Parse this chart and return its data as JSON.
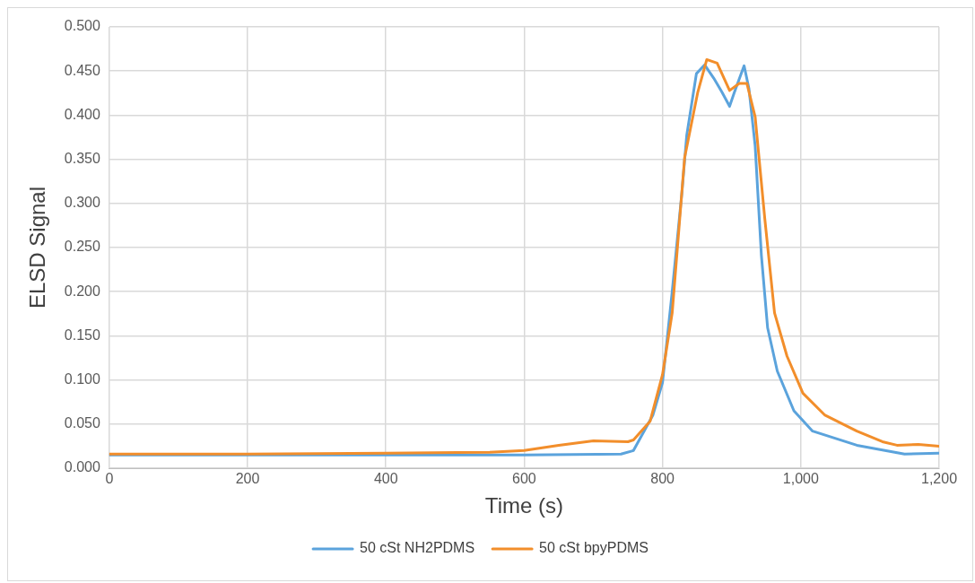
{
  "chart_data": {
    "type": "line",
    "xlabel": "Time (s)",
    "ylabel": "ELSD Signal",
    "xlim": [
      0,
      1200
    ],
    "xticks": [
      0,
      200,
      400,
      600,
      800,
      {
        "value": 1000,
        "label": "1,000"
      },
      {
        "value": 1200,
        "label": "1,200"
      }
    ],
    "ylim": [
      0,
      0.5
    ],
    "yticks": [
      {
        "value": 0,
        "label": "0.000"
      },
      {
        "value": 0.05,
        "label": "0.050"
      },
      {
        "value": 0.1,
        "label": "0.100"
      },
      {
        "value": 0.15,
        "label": "0.150"
      },
      {
        "value": 0.2,
        "label": "0.200"
      },
      {
        "value": 0.25,
        "label": "0.250"
      },
      {
        "value": 0.3,
        "label": "0.300"
      },
      {
        "value": 0.35,
        "label": "0.350"
      },
      {
        "value": 0.4,
        "label": "0.400"
      },
      {
        "value": 0.45,
        "label": "0.450"
      },
      {
        "value": 0.5,
        "label": "0.500"
      }
    ],
    "grid": true,
    "legend": "bottom",
    "marker": "none",
    "line_style": "solid",
    "series": [
      {
        "name": "50 cSt NH2PDMS",
        "color": "#5ba3dc",
        "x": [
          0,
          200,
          400,
          600,
          740,
          758,
          786,
          800,
          814,
          828,
          835,
          849,
          861,
          874,
          886,
          897,
          904,
          918,
          925,
          934,
          943,
          952,
          966,
          990,
          1017,
          1081,
          1150,
          1200
        ],
        "values": [
          0.015,
          0.015,
          0.015,
          0.015,
          0.016,
          0.02,
          0.06,
          0.097,
          0.2,
          0.312,
          0.377,
          0.447,
          0.457,
          0.442,
          0.426,
          0.41,
          0.426,
          0.456,
          0.43,
          0.365,
          0.241,
          0.159,
          0.11,
          0.065,
          0.042,
          0.026,
          0.016,
          0.017
        ]
      },
      {
        "name": "50 cSt bpyPDMS",
        "color": "#f28e2b",
        "x": [
          0,
          200,
          400,
          550,
          600,
          650,
          700,
          750,
          758,
          782,
          800,
          814,
          832,
          851,
          864,
          879,
          897,
          911,
          922,
          934,
          948,
          962,
          980,
          1003,
          1035,
          1081,
          1118,
          1139,
          1170,
          1200
        ],
        "values": [
          0.016,
          0.016,
          0.017,
          0.018,
          0.02,
          0.026,
          0.031,
          0.03,
          0.032,
          0.053,
          0.106,
          0.176,
          0.352,
          0.426,
          0.463,
          0.459,
          0.428,
          0.436,
          0.436,
          0.398,
          0.282,
          0.176,
          0.127,
          0.085,
          0.06,
          0.042,
          0.03,
          0.026,
          0.027,
          0.025
        ]
      }
    ]
  }
}
